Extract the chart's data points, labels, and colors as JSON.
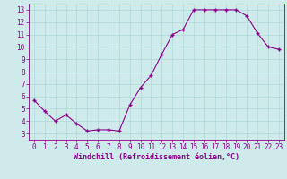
{
  "x": [
    0,
    1,
    2,
    3,
    4,
    5,
    6,
    7,
    8,
    9,
    10,
    11,
    12,
    13,
    14,
    15,
    16,
    17,
    18,
    19,
    20,
    21,
    22,
    23
  ],
  "y": [
    5.7,
    4.8,
    4.0,
    4.5,
    3.8,
    3.2,
    3.3,
    3.3,
    3.2,
    5.3,
    6.7,
    7.7,
    9.4,
    11.0,
    11.4,
    13.0,
    13.0,
    13.0,
    13.0,
    13.0,
    12.5,
    11.1,
    10.0,
    9.8
  ],
  "xlabel": "Windchill (Refroidissement éolien,°C)",
  "ylabel_ticks": [
    3,
    4,
    5,
    6,
    7,
    8,
    9,
    10,
    11,
    12,
    13
  ],
  "xticks": [
    0,
    1,
    2,
    3,
    4,
    5,
    6,
    7,
    8,
    9,
    10,
    11,
    12,
    13,
    14,
    15,
    16,
    17,
    18,
    19,
    20,
    21,
    22,
    23
  ],
  "line_color": "#8B008B",
  "marker_color": "#8B008B",
  "bg_color": "#ceeaea",
  "grid_color": "#b0d8d8",
  "ylim": [
    2.5,
    13.5
  ],
  "xlim": [
    -0.5,
    23.5
  ],
  "tick_fontsize": 5.5,
  "xlabel_fontsize": 6.0
}
